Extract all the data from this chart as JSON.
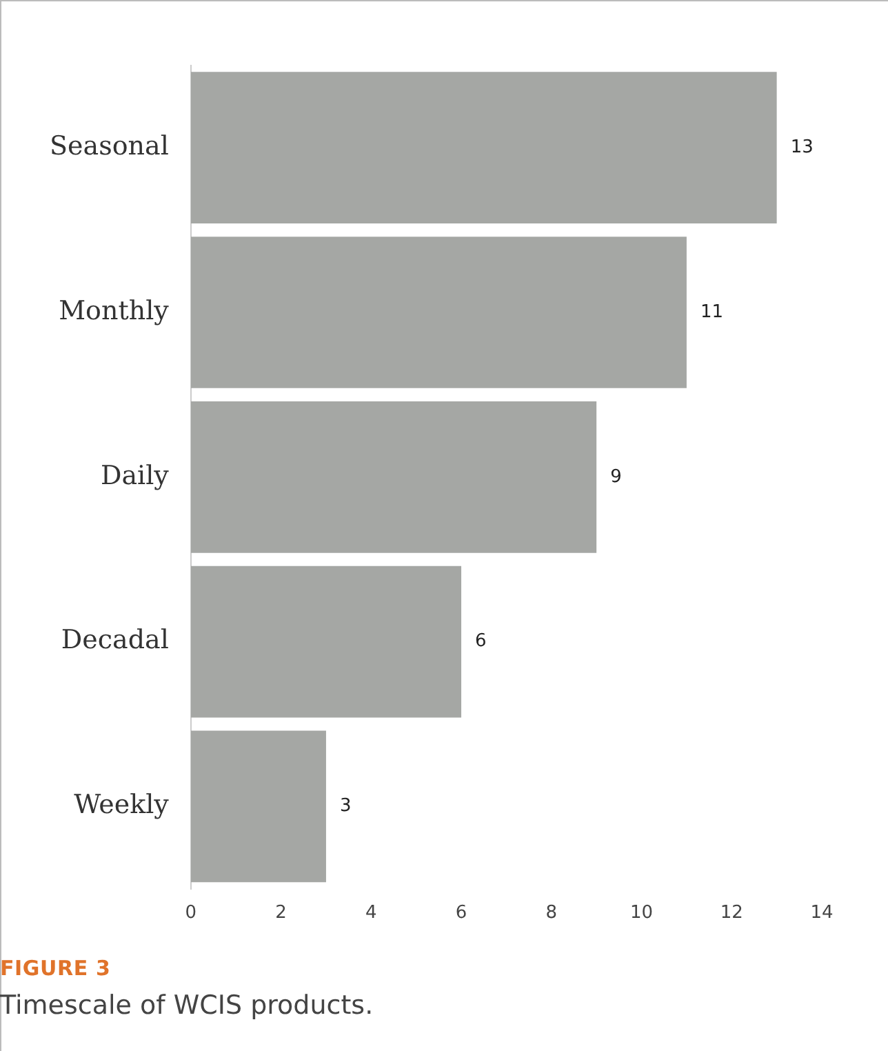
{
  "chart_data": {
    "type": "bar",
    "orientation": "horizontal",
    "categories": [
      "Seasonal",
      "Monthly",
      "Daily",
      "Decadal",
      "Weekly"
    ],
    "values": [
      13,
      11,
      9,
      6,
      3
    ],
    "color": "#a5a7a4",
    "xlim": [
      0,
      14
    ],
    "xticks": [
      0,
      2,
      4,
      6,
      8,
      10,
      12,
      14
    ],
    "grid": false,
    "legend": false,
    "data_labels": true,
    "annotations": [
      "FIGURE 3",
      "Timescale of WCIS products."
    ]
  }
}
